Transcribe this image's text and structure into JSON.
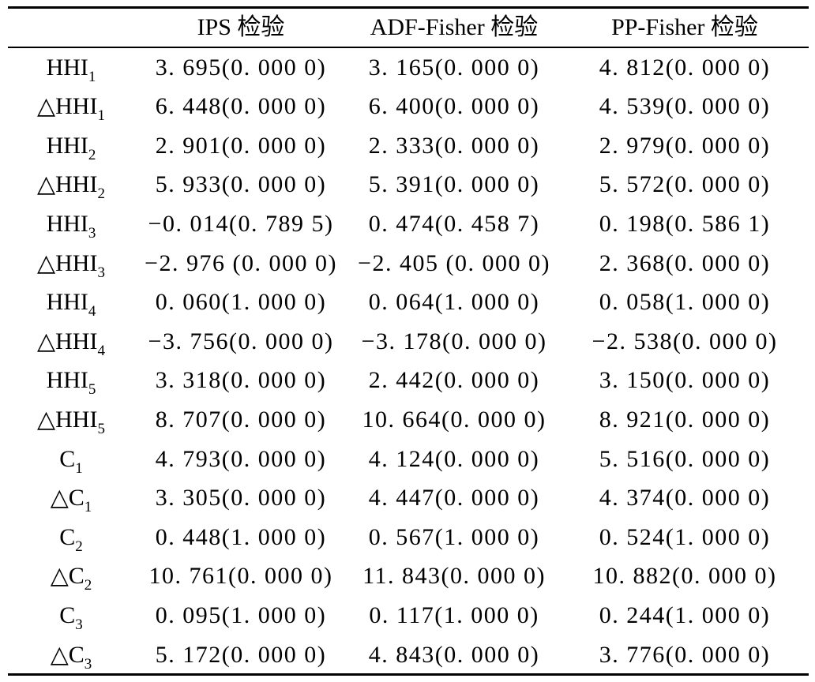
{
  "table": {
    "headers": [
      "",
      "IPS 检验",
      "ADF-Fisher 检验",
      "PP-Fisher 检验"
    ],
    "rows": [
      {
        "var": "HHI",
        "sub": "1",
        "ips": "3. 695(0. 000 0)",
        "adf": "3. 165(0. 000 0)",
        "pp": "4. 812(0. 000 0)"
      },
      {
        "var": "△HHI",
        "sub": "1",
        "ips": "6. 448(0. 000 0)",
        "adf": "6. 400(0. 000 0)",
        "pp": "4. 539(0. 000 0)"
      },
      {
        "var": "HHI",
        "sub": "2",
        "ips": "2. 901(0. 000 0)",
        "adf": "2. 333(0. 000 0)",
        "pp": "2. 979(0. 000 0)"
      },
      {
        "var": "△HHI",
        "sub": "2",
        "ips": "5. 933(0. 000 0)",
        "adf": "5. 391(0. 000 0)",
        "pp": "5. 572(0. 000 0)"
      },
      {
        "var": "HHI",
        "sub": "3",
        "ips": "−0. 014(0. 789 5)",
        "adf": "0. 474(0. 458 7)",
        "pp": "0. 198(0. 586 1)"
      },
      {
        "var": "△HHI",
        "sub": "3",
        "ips": "−2. 976 (0. 000 0)",
        "adf": "−2. 405 (0. 000 0)",
        "pp": "2. 368(0. 000 0)"
      },
      {
        "var": "HHI",
        "sub": "4",
        "ips": "0. 060(1. 000 0)",
        "adf": "0. 064(1. 000 0)",
        "pp": "0. 058(1. 000 0)"
      },
      {
        "var": "△HHI",
        "sub": "4",
        "ips": "−3. 756(0. 000 0)",
        "adf": "−3. 178(0. 000 0)",
        "pp": "−2. 538(0. 000 0)"
      },
      {
        "var": "HHI",
        "sub": "5",
        "ips": "3. 318(0. 000 0)",
        "adf": "2. 442(0. 000 0)",
        "pp": "3. 150(0. 000 0)"
      },
      {
        "var": "△HHI",
        "sub": "5",
        "ips": "8. 707(0. 000 0)",
        "adf": "10. 664(0. 000 0)",
        "pp": "8. 921(0. 000 0)"
      },
      {
        "var": "C",
        "sub": "1",
        "ips": "4. 793(0. 000 0)",
        "adf": "4. 124(0. 000 0)",
        "pp": "5. 516(0. 000 0)"
      },
      {
        "var": "△C",
        "sub": "1",
        "ips": "3. 305(0. 000 0)",
        "adf": "4. 447(0. 000 0)",
        "pp": "4. 374(0. 000 0)"
      },
      {
        "var": "C",
        "sub": "2",
        "ips": "0. 448(1. 000 0)",
        "adf": "0. 567(1. 000 0)",
        "pp": "0. 524(1. 000 0)"
      },
      {
        "var": "△C",
        "sub": "2",
        "ips": "10. 761(0. 000 0)",
        "adf": "11. 843(0. 000 0)",
        "pp": "10. 882(0. 000 0)"
      },
      {
        "var": "C",
        "sub": "3",
        "ips": "0. 095(1. 000 0)",
        "adf": "0. 117(1. 000 0)",
        "pp": "0. 244(1. 000 0)"
      },
      {
        "var": "△C",
        "sub": "3",
        "ips": "5. 172(0. 000 0)",
        "adf": "4. 843(0. 000 0)",
        "pp": "3. 776(0. 000 0)"
      }
    ]
  }
}
